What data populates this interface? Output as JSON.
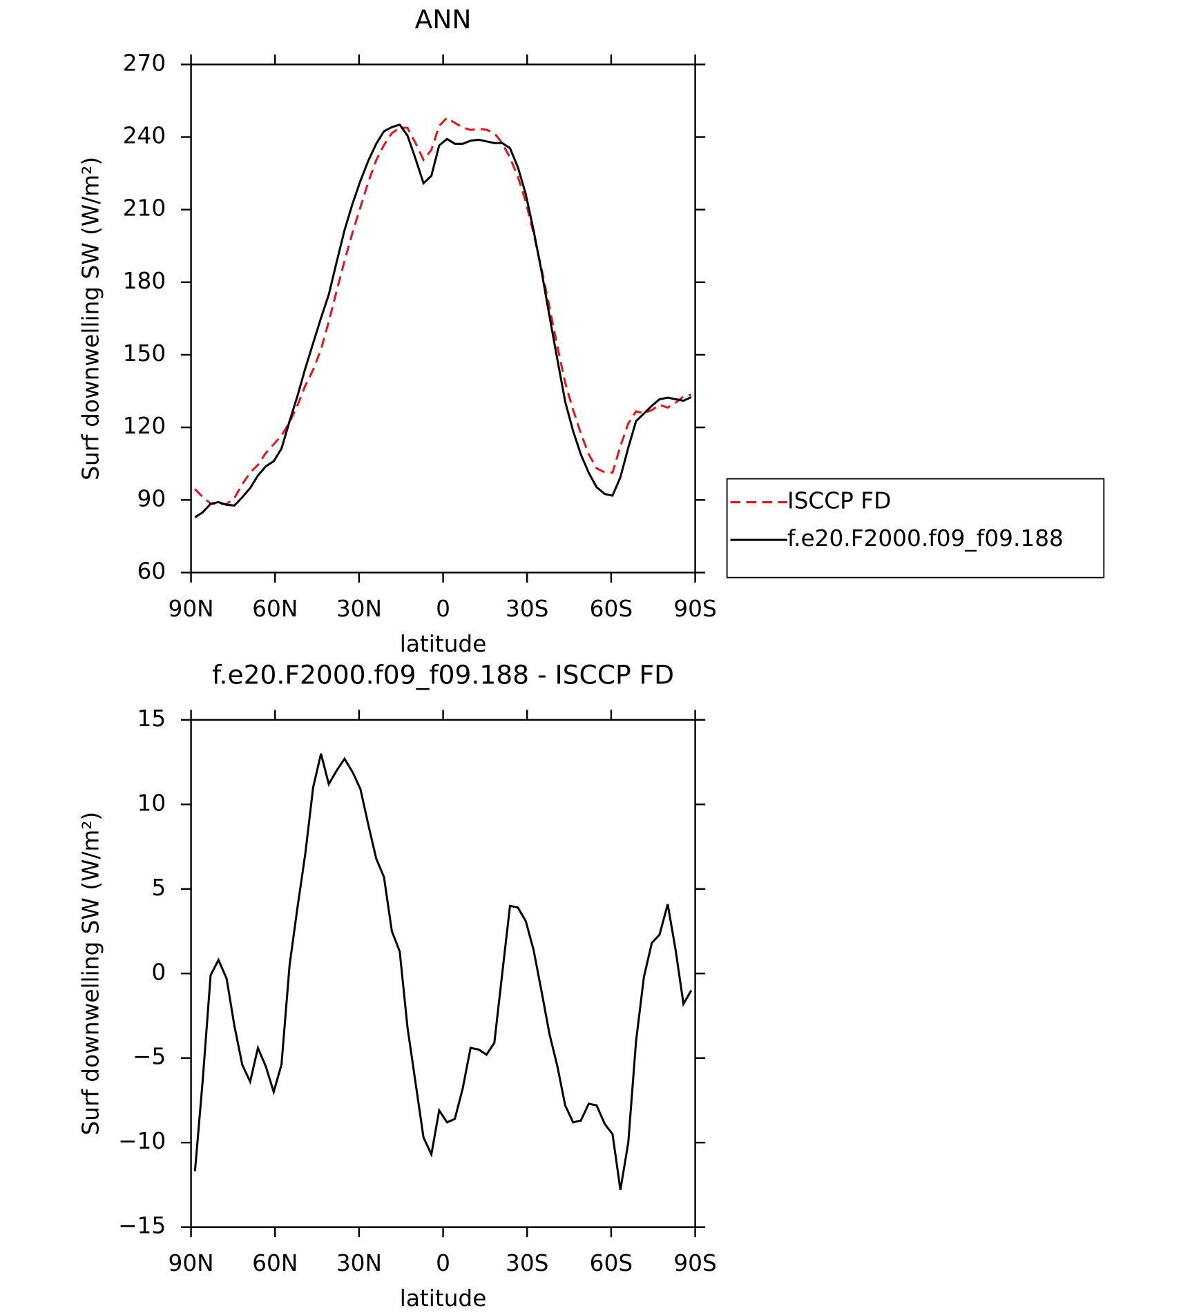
{
  "chart_data": [
    {
      "type": "line",
      "title": "ANN",
      "xlabel": "latitude",
      "ylabel": "Surf downwelling SW (W/m²)",
      "xlim": [
        90,
        -90
      ],
      "ylim": [
        60,
        270
      ],
      "xticks": [
        {
          "value": 90,
          "label": "90N"
        },
        {
          "value": 60,
          "label": "60N"
        },
        {
          "value": 30,
          "label": "30N"
        },
        0,
        {
          "value": -30,
          "label": "30S"
        },
        {
          "value": -60,
          "label": "60S"
        },
        {
          "value": -90,
          "label": "90S"
        }
      ],
      "yticks": [
        60,
        90,
        120,
        150,
        180,
        210,
        240,
        270
      ],
      "legend": "outside right",
      "x": [
        88.6,
        85.8,
        83.0,
        80.2,
        77.3,
        74.5,
        71.7,
        68.9,
        66.1,
        63.3,
        60.5,
        57.7,
        54.8,
        52.0,
        49.2,
        46.4,
        43.6,
        40.8,
        38.0,
        35.2,
        32.3,
        29.5,
        26.7,
        23.9,
        21.1,
        18.3,
        15.5,
        12.7,
        9.8,
        7.0,
        4.2,
        1.4,
        -1.4,
        -4.2,
        -7.0,
        -9.8,
        -12.7,
        -15.5,
        -18.3,
        -21.1,
        -23.9,
        -26.7,
        -29.5,
        -32.3,
        -35.2,
        -38.0,
        -40.8,
        -43.6,
        -46.4,
        -49.2,
        -52.0,
        -54.8,
        -57.7,
        -60.5,
        -63.3,
        -66.1,
        -68.9,
        -71.7,
        -74.5,
        -77.3,
        -80.2,
        -83.0,
        -85.8,
        -88.6
      ],
      "series": [
        {
          "name": "ISCCP FD",
          "color": "#e8141a",
          "linestyle": "dashed",
          "values": [
            94.5,
            91.2,
            88.5,
            88.3,
            88.3,
            90.8,
            96.5,
            101.3,
            104.5,
            109.4,
            113.0,
            116.6,
            122.1,
            129.1,
            137.3,
            143.8,
            152.2,
            163.7,
            176.4,
            188.8,
            200.7,
            211.0,
            221.4,
            230.4,
            236.7,
            241.6,
            243.8,
            243.8,
            237.4,
            230.6,
            234.7,
            244.6,
            248.0,
            245.8,
            244.0,
            242.9,
            243.4,
            243.0,
            241.6,
            237.5,
            231.4,
            223.6,
            213.3,
            200.1,
            185.3,
            169.5,
            153.4,
            138.4,
            127.3,
            117.5,
            108.9,
            103.1,
            101.4,
            101.3,
            112.2,
            121.6,
            126.6,
            125.9,
            127.1,
            129.3,
            128.2,
            130.2,
            132.8,
            133.5
          ]
        },
        {
          "name": "f.e20.F2000.f09_f09.188",
          "color": "#000000",
          "linestyle": "solid",
          "values": [
            82.8,
            84.9,
            88.4,
            89.1,
            88.0,
            87.7,
            91.1,
            94.9,
            100.1,
            103.9,
            106.0,
            111.2,
            122.6,
            133.0,
            144.4,
            154.8,
            165.2,
            174.9,
            188.4,
            201.5,
            212.6,
            221.9,
            230.2,
            237.2,
            242.4,
            244.1,
            245.1,
            240.6,
            230.9,
            220.9,
            224.0,
            236.5,
            239.2,
            237.2,
            237.2,
            238.5,
            238.9,
            238.2,
            237.5,
            237.5,
            235.4,
            227.5,
            216.4,
            201.5,
            184.2,
            165.9,
            147.9,
            130.6,
            118.5,
            108.8,
            101.2,
            95.3,
            92.5,
            91.8,
            99.4,
            111.6,
            122.6,
            125.7,
            128.9,
            131.6,
            132.3,
            131.6,
            131.0,
            132.5
          ]
        }
      ]
    },
    {
      "type": "line",
      "title": "f.e20.F2000.f09_f09.188 - ISCCP FD",
      "xlabel": "latitude",
      "ylabel": "Surf downwelling SW (W/m²)",
      "xlim": [
        90,
        -90
      ],
      "ylim": [
        -15,
        15
      ],
      "xticks": [
        {
          "value": 90,
          "label": "90N"
        },
        {
          "value": 60,
          "label": "60N"
        },
        {
          "value": 30,
          "label": "30N"
        },
        0,
        {
          "value": -30,
          "label": "30S"
        },
        {
          "value": -60,
          "label": "60S"
        },
        {
          "value": -90,
          "label": "90S"
        }
      ],
      "yticks": [
        {
          "value": -15,
          "label": "−15"
        },
        {
          "value": -10,
          "label": "−10"
        },
        {
          "value": -5,
          "label": "−5"
        },
        0,
        5,
        10,
        15
      ],
      "x": [
        88.6,
        85.8,
        83.0,
        80.2,
        77.3,
        74.5,
        71.7,
        68.9,
        66.1,
        63.3,
        60.5,
        57.7,
        54.8,
        52.0,
        49.2,
        46.4,
        43.6,
        40.8,
        38.0,
        35.2,
        32.3,
        29.5,
        26.7,
        23.9,
        21.1,
        18.3,
        15.5,
        12.7,
        9.8,
        7.0,
        4.2,
        1.4,
        -1.4,
        -4.2,
        -7.0,
        -9.8,
        -12.7,
        -15.5,
        -18.3,
        -21.1,
        -23.9,
        -26.7,
        -29.5,
        -32.3,
        -35.2,
        -38.0,
        -40.8,
        -43.6,
        -46.4,
        -49.2,
        -52.0,
        -54.8,
        -57.7,
        -60.5,
        -63.3,
        -66.1,
        -68.9,
        -71.7,
        -74.5,
        -77.3,
        -80.2,
        -83.0,
        -85.8,
        -88.6
      ],
      "color": "#000000",
      "values": [
        -11.7,
        -6.3,
        -0.1,
        0.8,
        -0.3,
        -3.1,
        -5.4,
        -6.4,
        -4.4,
        -5.5,
        -7.0,
        -5.4,
        0.5,
        3.9,
        7.1,
        11.0,
        13.0,
        11.2,
        12.0,
        12.7,
        11.9,
        10.9,
        8.8,
        6.8,
        5.7,
        2.5,
        1.3,
        -3.2,
        -6.5,
        -9.7,
        -10.7,
        -8.1,
        -8.8,
        -8.6,
        -6.8,
        -4.4,
        -4.5,
        -4.8,
        -4.1,
        0.0,
        4.0,
        3.9,
        3.1,
        1.4,
        -1.1,
        -3.6,
        -5.5,
        -7.8,
        -8.8,
        -8.7,
        -7.7,
        -7.8,
        -8.9,
        -9.5,
        -12.8,
        -10.0,
        -4.0,
        -0.2,
        1.8,
        2.3,
        4.1,
        1.4,
        -1.8,
        -1.0
      ]
    }
  ]
}
